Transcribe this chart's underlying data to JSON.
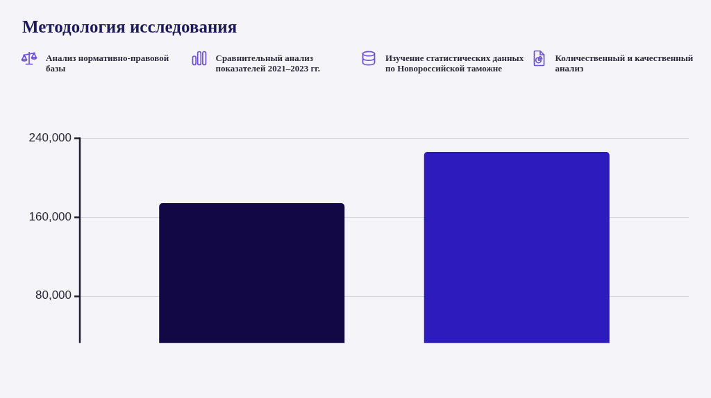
{
  "chart_data": {
    "type": "bar",
    "title": "Методология исследования",
    "annotations": [
      "Анализ нормативно-правовой базы",
      "Сравнительный анализ показателей 2021–2023 гг.",
      "Изучение статистических данных по Новороссийской таможне",
      "Количественный и качественный анализ"
    ],
    "categories": [
      null,
      null
    ],
    "values": [
      174000,
      226000
    ],
    "colors": [
      "#110845",
      "#2d1bbe"
    ],
    "ylim": [
      32000,
      240000
    ],
    "yticks": [
      {
        "value": 80000,
        "label": "80,000"
      },
      {
        "value": 160000,
        "label": "160,000"
      },
      {
        "value": 240000,
        "label": "240,000"
      }
    ],
    "grid": "y",
    "tick_labels": "y"
  }
}
